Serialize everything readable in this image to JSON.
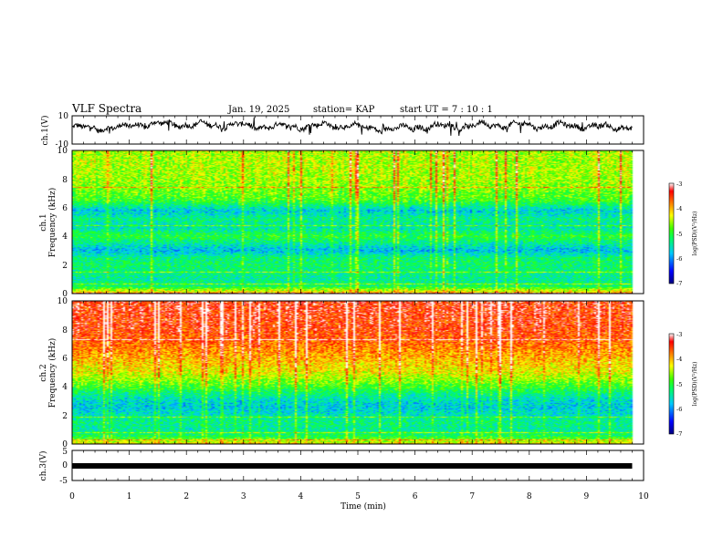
{
  "header": {
    "title": "VLF Spectra",
    "date": "Jan. 19, 2025",
    "station": "station= KAP",
    "start_time": "start  UT =   7 : 10 : 1"
  },
  "chart_data": [
    {
      "type": "line",
      "panel": "ch1-voltage",
      "ylabel": "ch.1(V)",
      "ylim": [
        -10,
        10
      ],
      "yticks": [
        "10",
        "-10"
      ],
      "xlim": [
        0,
        10
      ],
      "x_end": 9.8,
      "series": [
        {
          "name": "ch.1",
          "description_level": [
            1.5,
            4.0,
            3.5,
            2.5,
            3.0,
            1.0,
            2.5,
            3.5,
            3.0,
            2.0
          ]
        }
      ]
    },
    {
      "type": "heatmap",
      "panel": "ch1-spectrogram",
      "ylabel": "ch.1",
      "ylabel2": "Frequency (kHz)",
      "ylim": [
        0,
        10
      ],
      "yticks": [
        "0",
        "2",
        "4",
        "6",
        "8",
        "10"
      ],
      "xlim": [
        0,
        10
      ],
      "x_end": 9.8,
      "colorbar": {
        "label": "log(PSD)(V²/Hz)",
        "range": [
          -7,
          -3
        ],
        "ticks": [
          "-3",
          "-4",
          "-5",
          "-6",
          "-7"
        ]
      },
      "level_profile": [
        {
          "f": 0.0,
          "v": -4.0
        },
        {
          "f": 0.5,
          "v": -5.2
        },
        {
          "f": 1.0,
          "v": -5.4
        },
        {
          "f": 1.5,
          "v": -5.3
        },
        {
          "f": 2.0,
          "v": -5.2
        },
        {
          "f": 2.5,
          "v": -5.3
        },
        {
          "f": 3.0,
          "v": -5.8
        },
        {
          "f": 3.5,
          "v": -5.4
        },
        {
          "f": 4.0,
          "v": -5.0
        },
        {
          "f": 4.6,
          "v": -5.5
        },
        {
          "f": 5.2,
          "v": -5.3
        },
        {
          "f": 5.8,
          "v": -5.7
        },
        {
          "f": 6.5,
          "v": -4.9
        },
        {
          "f": 7.5,
          "v": -4.6
        },
        {
          "f": 8.5,
          "v": -4.5
        },
        {
          "f": 10.0,
          "v": -4.5
        }
      ]
    },
    {
      "type": "heatmap",
      "panel": "ch2-spectrogram",
      "ylabel": "ch.2",
      "ylabel2": "Frequency (kHz)",
      "ylim": [
        0,
        10
      ],
      "yticks": [
        "0",
        "2",
        "4",
        "6",
        "8",
        "10"
      ],
      "xlim": [
        0,
        10
      ],
      "x_end": 9.8,
      "colorbar": {
        "label": "log(PSD)(V²/Hz)",
        "range": [
          -7,
          -3
        ],
        "ticks": [
          "-3",
          "-4",
          "-5",
          "-6",
          "-7"
        ]
      },
      "level_profile": [
        {
          "f": 0.0,
          "v": -4.2
        },
        {
          "f": 0.5,
          "v": -5.1
        },
        {
          "f": 1.0,
          "v": -5.4
        },
        {
          "f": 1.5,
          "v": -5.3
        },
        {
          "f": 2.0,
          "v": -5.5
        },
        {
          "f": 2.5,
          "v": -5.7
        },
        {
          "f": 3.0,
          "v": -5.6
        },
        {
          "f": 3.5,
          "v": -5.3
        },
        {
          "f": 4.0,
          "v": -4.9
        },
        {
          "f": 4.5,
          "v": -4.6
        },
        {
          "f": 5.0,
          "v": -4.3
        },
        {
          "f": 6.0,
          "v": -4.0
        },
        {
          "f": 7.0,
          "v": -3.7
        },
        {
          "f": 8.0,
          "v": -3.5
        },
        {
          "f": 10.0,
          "v": -3.4
        }
      ]
    },
    {
      "type": "line",
      "panel": "ch3-voltage",
      "ylabel": "ch.3(V)",
      "ylim": [
        -5,
        5
      ],
      "yticks": [
        "5",
        "0",
        "-5"
      ],
      "xlim": [
        0,
        10
      ],
      "x_end": 9.8,
      "series": [
        {
          "name": "ch.3",
          "level": 0
        }
      ]
    }
  ],
  "x_axis": {
    "label": "Time (min)",
    "ticks": [
      "0",
      "1",
      "2",
      "3",
      "4",
      "5",
      "6",
      "7",
      "8",
      "9",
      "10"
    ]
  },
  "colors": {
    "colormap": [
      "#000080",
      "#0000ff",
      "#00c8ff",
      "#00ff60",
      "#40ff00",
      "#ffff00",
      "#ff8000",
      "#ff0000",
      "#ffffff"
    ],
    "trace": "#000000"
  }
}
